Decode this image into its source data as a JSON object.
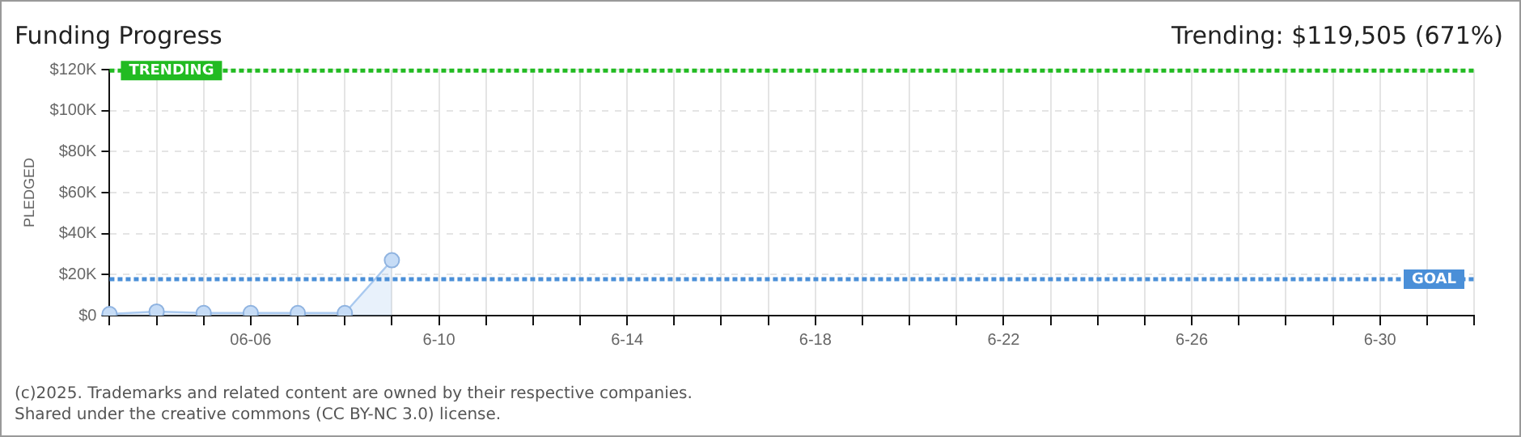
{
  "chart_data": {
    "type": "area",
    "title": "Funding Progress",
    "subtitle": "Trending: $119,505 (671%)",
    "ylabel": "PLEDGED",
    "categories": [
      null,
      null,
      null,
      "06-06",
      null,
      null,
      null,
      "6-10",
      null,
      null,
      null,
      "6-14",
      null,
      null,
      null,
      "6-18",
      null,
      null,
      null,
      "6-22",
      null,
      null,
      null,
      "6-26",
      null,
      null,
      null,
      "6-30",
      null,
      null
    ],
    "series": [
      {
        "color": "#a9c9ef",
        "values": [
          800,
          2000,
          1300,
          1300,
          1300,
          1300,
          27000,
          null,
          null,
          null,
          null,
          null,
          null,
          null,
          null,
          null,
          null,
          null,
          null,
          null,
          null,
          null,
          null,
          null,
          null,
          null,
          null,
          null,
          null,
          null
        ]
      }
    ],
    "ylim": [
      0,
      120000
    ],
    "yticks": [
      {
        "value": 0,
        "label": "$0"
      },
      {
        "value": 20000,
        "label": "$20K"
      },
      {
        "value": 40000,
        "label": "$40K"
      },
      {
        "value": 60000,
        "label": "$60K"
      },
      {
        "value": 80000,
        "label": "$80K"
      },
      {
        "value": 100000,
        "label": "$100K"
      },
      {
        "value": 120000,
        "label": "$120K"
      }
    ],
    "ref_lines": [
      {
        "axis": "y",
        "value": 119505,
        "label": "TRENDING",
        "color": "#22bb22",
        "line_style": "dotted"
      },
      {
        "axis": "y",
        "value": 17800,
        "label": "GOAL",
        "color": "#4a8fd8",
        "line_style": "dotted"
      }
    ],
    "annotations": [
      "(c)2025. Trademarks and related content are owned by their respective companies.",
      "Shared under the creative commons (CC BY-NC 3.0) license."
    ],
    "grid": true,
    "legend": false,
    "marker": "circle",
    "line_style": "solid"
  }
}
